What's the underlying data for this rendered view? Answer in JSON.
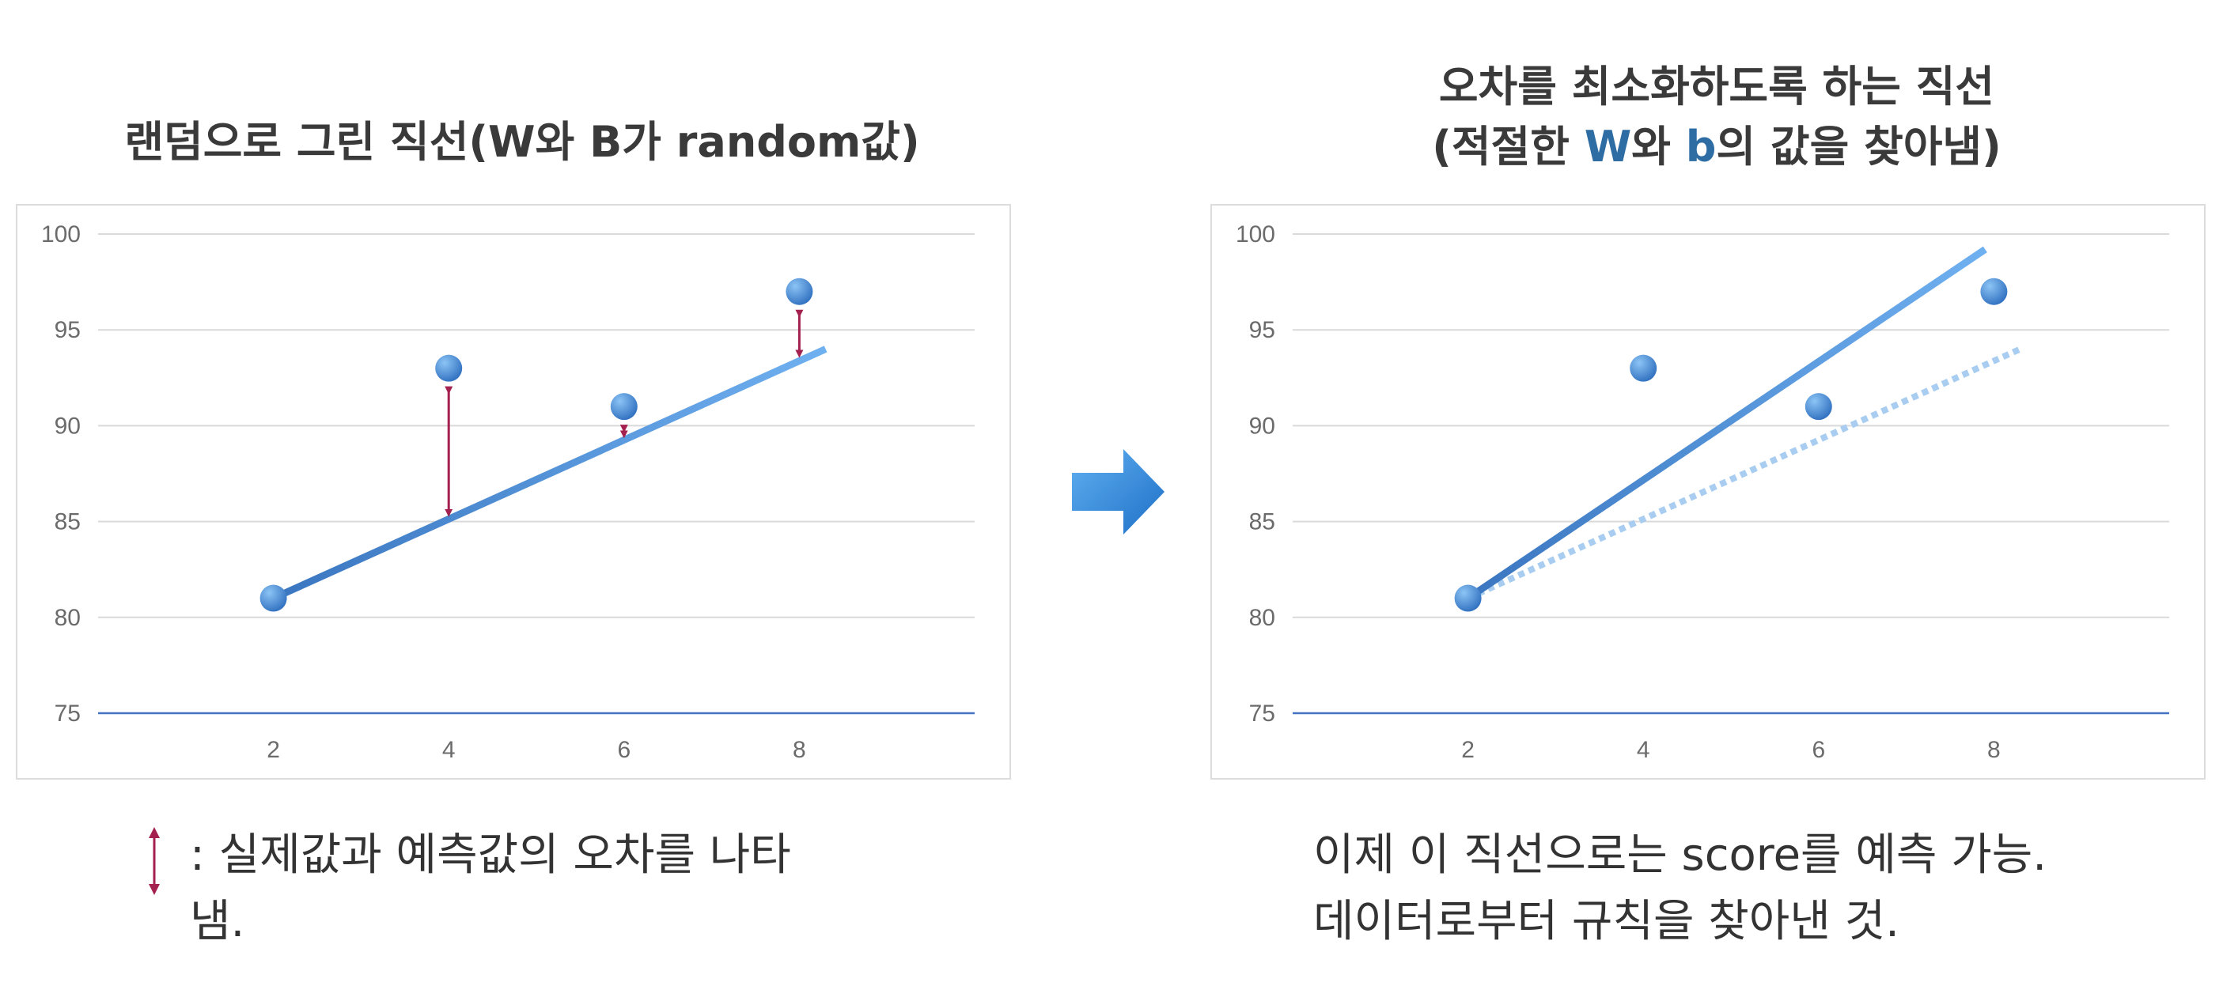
{
  "left_title": "랜덤으로 그린 직선(W와 B가 random값)",
  "right_title": {
    "line1": "오차를 최소화하도록 하는 직선",
    "line2_a": "(적절한 ",
    "line2_w": "W",
    "line2_b": "와 ",
    "line2_bvar": "b",
    "line2_c": "의 값을 찾아냄)"
  },
  "left_note": ": 실제값과 예측값의 오차를 나타냄.",
  "right_note_lines": [
    "이제 이 직선으로는 score를 예측 가능.",
    "데이터로부터 규칙을 찾아낸 것."
  ],
  "colors": {
    "point": "#4a8ad4",
    "fit_line": "#5a9ae0",
    "error_arrow": "#a3204f",
    "axis": "#4472c4",
    "grid": "#d9d9d9",
    "dotted_line": "#a8cdf0",
    "big_arrow": "#3b8ee0",
    "accent": "#2e6da4"
  },
  "icons": {
    "big_arrow": "right-arrow-icon",
    "legend": "double-headed-arrow-icon"
  },
  "chart_data": [
    {
      "type": "scatter",
      "points": [
        {
          "x": 2,
          "y": 81
        },
        {
          "x": 4,
          "y": 93
        },
        {
          "x": 6,
          "y": 91
        },
        {
          "x": 8,
          "y": 97
        }
      ],
      "line": {
        "x": [
          2,
          8.3
        ],
        "y": [
          81,
          94
        ]
      },
      "error_arrows": [
        {
          "x": 4,
          "from": 85.2,
          "to": 93
        },
        {
          "x": 6,
          "from": 89.3,
          "to": 91
        },
        {
          "x": 8,
          "from": 93.5,
          "to": 97
        }
      ],
      "xticks": [
        2,
        4,
        6,
        8
      ],
      "yticks": [
        75,
        80,
        85,
        90,
        95,
        100
      ],
      "xlim": [
        0,
        10
      ],
      "ylim": [
        75,
        100
      ],
      "grid": true
    },
    {
      "type": "scatter",
      "points": [
        {
          "x": 2,
          "y": 81
        },
        {
          "x": 4,
          "y": 93
        },
        {
          "x": 6,
          "y": 91
        },
        {
          "x": 8,
          "y": 97
        }
      ],
      "line": {
        "x": [
          2,
          7.9
        ],
        "y": [
          81,
          99.2
        ]
      },
      "old_line": {
        "x": [
          2,
          8.3
        ],
        "y": [
          81,
          94
        ]
      },
      "xticks": [
        2,
        4,
        6,
        8
      ],
      "yticks": [
        75,
        80,
        85,
        90,
        95,
        100
      ],
      "xlim": [
        0,
        10
      ],
      "ylim": [
        75,
        100
      ],
      "grid": true
    }
  ]
}
